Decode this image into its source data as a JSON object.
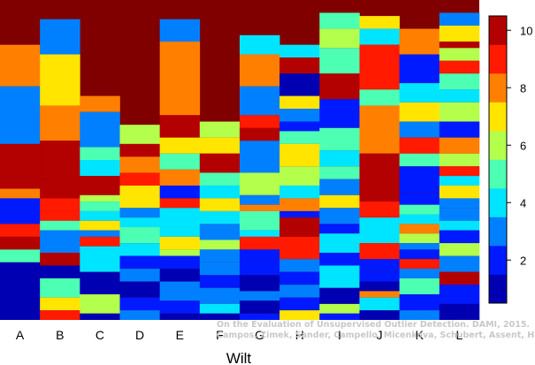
{
  "chart_data": {
    "type": "heatmap",
    "title": "",
    "xlabel": "Wilt",
    "ylabel": "",
    "categories": [
      "A",
      "B",
      "C",
      "D",
      "E",
      "F",
      "G",
      "H",
      "I",
      "J",
      "K",
      "L"
    ],
    "colorbar": {
      "colormap": "jet",
      "range": [
        0.5,
        10.5
      ],
      "ticks": [
        2,
        4,
        6,
        8,
        10
      ],
      "tick_labels": [
        "2",
        "4",
        "6",
        "8",
        "10"
      ],
      "levels": 10
    },
    "columns": [
      {
        "label": "A",
        "stripes": [
          [
            0.14,
            7.6
          ],
          [
            0.27,
            3.0
          ],
          [
            0.45,
            9.5
          ],
          [
            0.56,
            9.8
          ],
          [
            0.59,
            8.3
          ],
          [
            0.62,
            2.2
          ],
          [
            0.66,
            1.6
          ],
          [
            0.7,
            9.4
          ],
          [
            0.74,
            9.8
          ],
          [
            0.78,
            4.5
          ],
          [
            0.82,
            1.0
          ]
        ]
      },
      {
        "label": "B",
        "stripes": [
          [
            0.06,
            3.2
          ],
          [
            0.17,
            7.0
          ],
          [
            0.33,
            7.5
          ],
          [
            0.44,
            9.6
          ],
          [
            0.56,
            9.9
          ],
          [
            0.62,
            8.6
          ],
          [
            0.66,
            9.2
          ],
          [
            0.69,
            4.6
          ],
          [
            0.72,
            2.5
          ],
          [
            0.79,
            9.8
          ],
          [
            0.83,
            1.1
          ],
          [
            0.87,
            5.3
          ],
          [
            0.93,
            6.8
          ],
          [
            0.97,
            8.5
          ]
        ]
      },
      {
        "label": "C",
        "stripes": [
          [
            0.3,
            8.1
          ],
          [
            0.35,
            3.0
          ],
          [
            0.37,
            2.7
          ],
          [
            0.46,
            5.0
          ],
          [
            0.5,
            3.5
          ],
          [
            0.55,
            9.8
          ],
          [
            0.61,
            6.1
          ],
          [
            0.63,
            5.2
          ],
          [
            0.66,
            4.4
          ],
          [
            0.69,
            7.4
          ],
          [
            0.72,
            3.2
          ],
          [
            0.74,
            9.0
          ],
          [
            0.77,
            3.8
          ],
          [
            0.85,
            1.3
          ],
          [
            0.92,
            5.9
          ],
          [
            0.98,
            1.4
          ]
        ]
      },
      {
        "label": "D",
        "stripes": [
          [
            0.39,
            5.6
          ],
          [
            0.45,
            9.9
          ],
          [
            0.49,
            8.0
          ],
          [
            0.54,
            8.8
          ],
          [
            0.58,
            6.6
          ],
          [
            0.65,
            3.4
          ],
          [
            0.68,
            4.4
          ],
          [
            0.71,
            5.1
          ],
          [
            0.76,
            3.9
          ],
          [
            0.8,
            1.9
          ],
          [
            0.84,
            2.5
          ],
          [
            0.88,
            1.3
          ],
          [
            0.93,
            1.6
          ],
          [
            0.97,
            2.8
          ]
        ]
      },
      {
        "label": "E",
        "stripes": [
          [
            0.06,
            2.9
          ],
          [
            0.13,
            8.3
          ],
          [
            0.36,
            9.6
          ],
          [
            0.43,
            6.5
          ],
          [
            0.48,
            5.0
          ],
          [
            0.53,
            7.5
          ],
          [
            0.58,
            2.4
          ],
          [
            0.62,
            9.2
          ],
          [
            0.65,
            4.1
          ],
          [
            0.71,
            3.5
          ],
          [
            0.74,
            6.7
          ],
          [
            0.78,
            5.8
          ],
          [
            0.8,
            2.2
          ],
          [
            0.84,
            1.4
          ],
          [
            0.88,
            3.3
          ],
          [
            0.94,
            1.6
          ],
          [
            0.98,
            1.3
          ]
        ]
      },
      {
        "label": "F",
        "stripes": [
          [
            0.38,
            6.2
          ],
          [
            0.43,
            7.4
          ],
          [
            0.48,
            9.7
          ],
          [
            0.54,
            4.9
          ],
          [
            0.58,
            3.6
          ],
          [
            0.62,
            7.0
          ],
          [
            0.66,
            4.0
          ],
          [
            0.7,
            3.4
          ],
          [
            0.75,
            5.6
          ],
          [
            0.78,
            2.8
          ],
          [
            0.82,
            3.4
          ],
          [
            0.86,
            1.5
          ],
          [
            0.9,
            2.7
          ],
          [
            0.95,
            4.1
          ],
          [
            0.98,
            1.1
          ]
        ]
      },
      {
        "label": "G",
        "stripes": [
          [
            0.11,
            3.7
          ],
          [
            0.17,
            7.6
          ],
          [
            0.27,
            3.4
          ],
          [
            0.36,
            8.6
          ],
          [
            0.4,
            9.5
          ],
          [
            0.44,
            2.9
          ],
          [
            0.54,
            5.9
          ],
          [
            0.61,
            3.3
          ],
          [
            0.64,
            7.5
          ],
          [
            0.66,
            5.4
          ],
          [
            0.72,
            3.7
          ],
          [
            0.74,
            8.8
          ],
          [
            0.78,
            1.8
          ],
          [
            0.81,
            2.3
          ],
          [
            0.86,
            1.3
          ],
          [
            0.91,
            2.5
          ],
          [
            0.94,
            1.0
          ],
          [
            0.98,
            1.5
          ]
        ]
      },
      {
        "label": "H",
        "stripes": [
          [
            0.14,
            4.3
          ],
          [
            0.18,
            9.8
          ],
          [
            0.23,
            1.0
          ],
          [
            0.3,
            7.3
          ],
          [
            0.34,
            3.4
          ],
          [
            0.38,
            2.1
          ],
          [
            0.41,
            4.6
          ],
          [
            0.45,
            6.7
          ],
          [
            0.52,
            6.4
          ],
          [
            0.58,
            4.4
          ],
          [
            0.62,
            8.0
          ],
          [
            0.66,
            1.6
          ],
          [
            0.68,
            9.6
          ],
          [
            0.74,
            8.9
          ],
          [
            0.81,
            2.9
          ],
          [
            0.85,
            1.6
          ],
          [
            0.89,
            3.4
          ],
          [
            0.93,
            1.9
          ],
          [
            0.97,
            6.5
          ]
        ]
      },
      {
        "label": "I",
        "stripes": [
          [
            0.04,
            5.1
          ],
          [
            0.09,
            6.4
          ],
          [
            0.15,
            5.3
          ],
          [
            0.23,
            9.6
          ],
          [
            0.31,
            2.2
          ],
          [
            0.4,
            4.8
          ],
          [
            0.47,
            3.6
          ],
          [
            0.52,
            5.2
          ],
          [
            0.56,
            2.6
          ],
          [
            0.61,
            7.4
          ],
          [
            0.65,
            3.3
          ],
          [
            0.7,
            1.9
          ],
          [
            0.73,
            4.0
          ],
          [
            0.79,
            1.8
          ],
          [
            0.83,
            3.7
          ],
          [
            0.9,
            1.2
          ],
          [
            0.95,
            6.4
          ],
          [
            0.98,
            1.5
          ]
        ]
      },
      {
        "label": "J",
        "stripes": [
          [
            0.05,
            6.5
          ],
          [
            0.09,
            4.4
          ],
          [
            0.14,
            8.5
          ],
          [
            0.28,
            5.1
          ],
          [
            0.33,
            7.5
          ],
          [
            0.48,
            9.8
          ],
          [
            0.63,
            9.4
          ],
          [
            0.68,
            4.2
          ],
          [
            0.76,
            9.1
          ],
          [
            0.81,
            1.9
          ],
          [
            0.85,
            2.1
          ],
          [
            0.88,
            1.4
          ],
          [
            0.91,
            7.6
          ],
          [
            0.93,
            3.8
          ],
          [
            0.97,
            1.1
          ]
        ]
      },
      {
        "label": "K",
        "stripes": [
          [
            0.09,
            7.6
          ],
          [
            0.17,
            1.5
          ],
          [
            0.26,
            4.0
          ],
          [
            0.32,
            7.1
          ],
          [
            0.38,
            2.8
          ],
          [
            0.43,
            9.3
          ],
          [
            0.48,
            5.3
          ],
          [
            0.52,
            2.1
          ],
          [
            0.6,
            1.6
          ],
          [
            0.64,
            4.7
          ],
          [
            0.67,
            3.5
          ],
          [
            0.7,
            7.6
          ],
          [
            0.73,
            5.5
          ],
          [
            0.76,
            2.7
          ],
          [
            0.78,
            1.9
          ],
          [
            0.81,
            9.3
          ],
          [
            0.84,
            3.2
          ],
          [
            0.87,
            5.0
          ],
          [
            0.92,
            1.7
          ],
          [
            0.97,
            3.2
          ]
        ]
      },
      {
        "label": "L",
        "stripes": [
          [
            0.04,
            2.7
          ],
          [
            0.08,
            7.0
          ],
          [
            0.13,
            9.8
          ],
          [
            0.15,
            6.1
          ],
          [
            0.19,
            8.7
          ],
          [
            0.23,
            5.0
          ],
          [
            0.28,
            3.7
          ],
          [
            0.32,
            5.5
          ],
          [
            0.38,
            1.6
          ],
          [
            0.43,
            7.9
          ],
          [
            0.48,
            5.6
          ],
          [
            0.52,
            8.7
          ],
          [
            0.55,
            4.3
          ],
          [
            0.58,
            6.5
          ],
          [
            0.62,
            3.4
          ],
          [
            0.65,
            2.8
          ],
          [
            0.69,
            4.1
          ],
          [
            0.72,
            2.1
          ],
          [
            0.76,
            6.3
          ],
          [
            0.8,
            3.0
          ],
          [
            0.85,
            9.6
          ],
          [
            0.89,
            2.2
          ],
          [
            0.95,
            1.4
          ],
          [
            0.98,
            0.9
          ]
        ]
      }
    ]
  },
  "credit": {
    "line1": "On the Evaluation of Unsupervised Outlier Detection. DAMI, 2015.",
    "line2": "Campos, Zimek, Sander, Campello, Micenkova, Schubert, Assent, Houle"
  }
}
